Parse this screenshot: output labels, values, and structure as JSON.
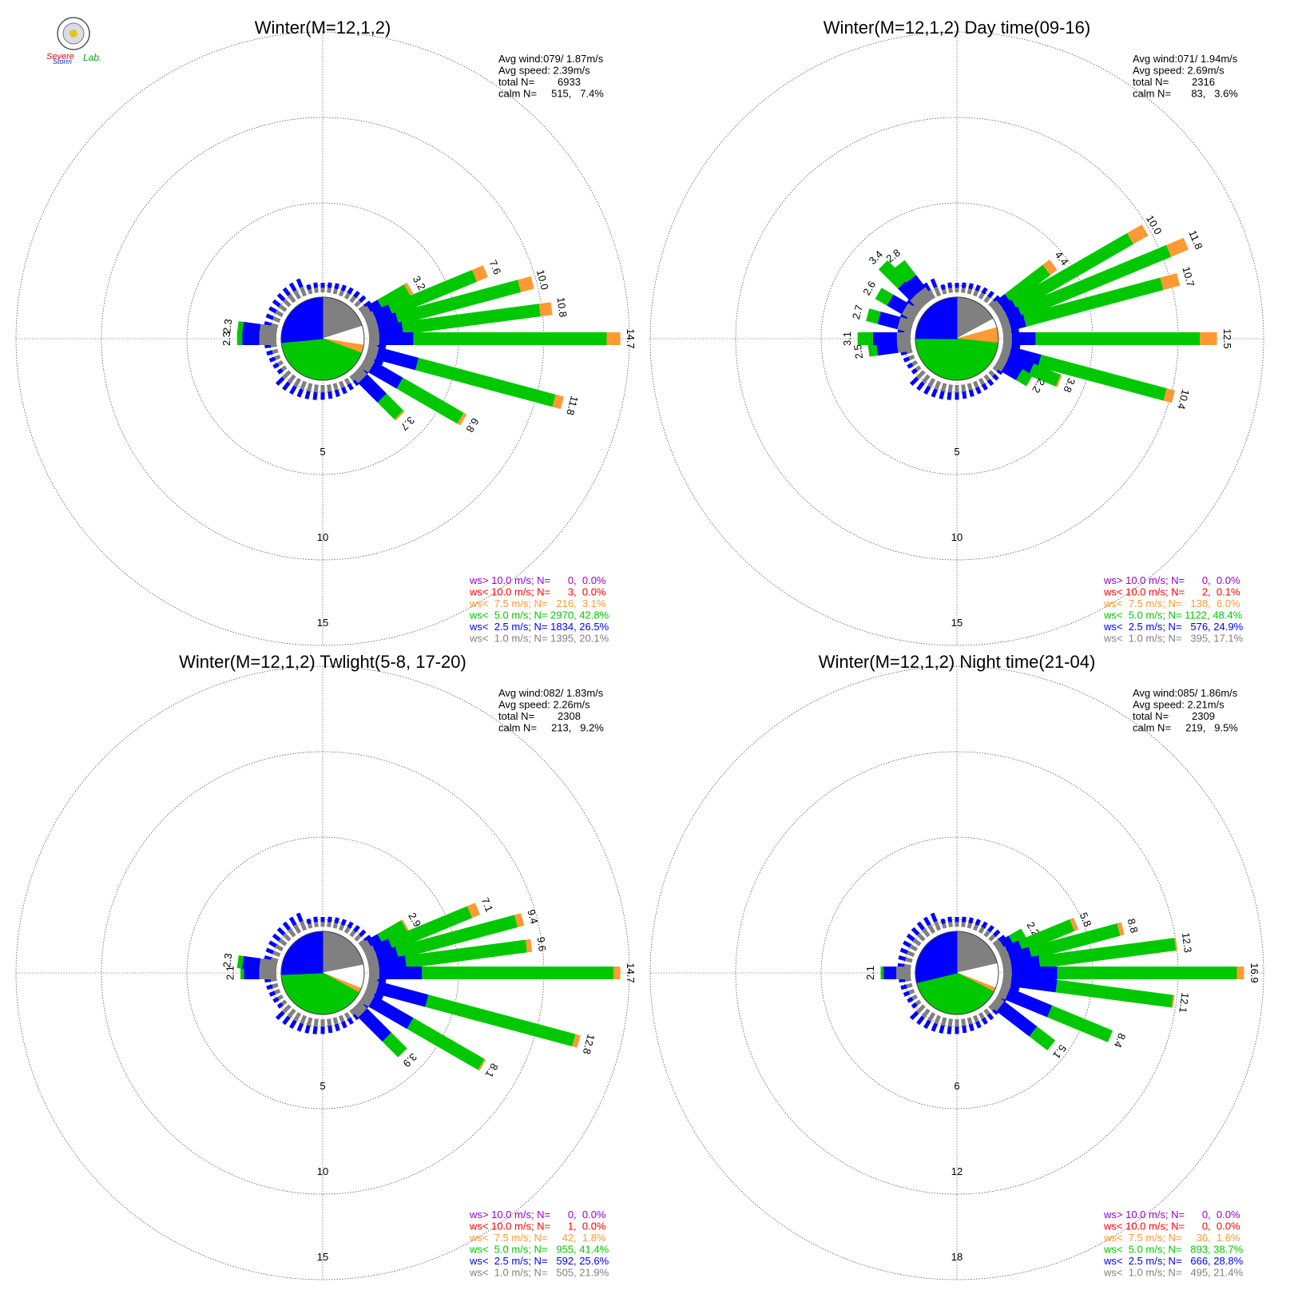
{
  "logo": {
    "text_severe": "Severe",
    "text_storm": "Storm",
    "text_lab": "Lab."
  },
  "legend_colors": {
    "gt10": "#9400d3",
    "lt10": "#ff0000",
    "lt7_5": "#ff9933",
    "lt5": "#00c800",
    "lt2_5": "#0000ff",
    "lt1": "#808080"
  },
  "chart_data": [
    {
      "type": "windrose",
      "title": "Winter(M=12,1,2)",
      "stats": [
        "Avg wind:079/ 1.87m/s",
        "Avg speed: 2.39m/s",
        "total N=        6933",
        "calm N=     515,   7.4%"
      ],
      "ring_labels": [
        "5",
        "10",
        "15"
      ],
      "rmax": 15,
      "legend": [
        "ws> 10.0 m/s; N=      0,  0.0%",
        "ws< 10.0 m/s; N=      3,  0.0%",
        "ws<  7.5 m/s; N=   216,  3.1%",
        "ws<  5.0 m/s; N= 2970, 42.8%",
        "ws<  2.5 m/s; N= 1834, 26.5%",
        "ws<  1.0 m/s; N= 1395, 20.1%"
      ],
      "pie": {
        "lt1": 20.1,
        "lt2_5": 26.5,
        "lt5": 42.8,
        "lt7_5": 3.1,
        "calm": 7.4
      },
      "bars": [
        {
          "dir": 60,
          "total": 3.2,
          "split": [
            0.5,
            0.7,
            1.8,
            0.2
          ],
          "label": "3.2"
        },
        {
          "dir": 67.5,
          "total": 7.6,
          "split": [
            0.6,
            1.0,
            5.3,
            0.7
          ],
          "label": "7.6"
        },
        {
          "dir": 75,
          "total": 10.0,
          "split": [
            0.6,
            1.2,
            7.4,
            0.8
          ],
          "label": "10.0"
        },
        {
          "dir": 82.5,
          "total": 10.8,
          "split": [
            0.6,
            1.4,
            8.1,
            0.7
          ],
          "label": "10.8"
        },
        {
          "dir": 90,
          "total": 14.7,
          "split": [
            0.6,
            2.0,
            11.3,
            0.8
          ],
          "label": "14.7"
        },
        {
          "dir": 105,
          "total": 11.8,
          "split": [
            0.6,
            2.4,
            8.3,
            0.5
          ],
          "label": "11.8"
        },
        {
          "dir": 120,
          "total": 6.8,
          "split": [
            0.6,
            1.9,
            4.1,
            0.2
          ],
          "label": "6.8"
        },
        {
          "dir": 135,
          "total": 3.7,
          "split": [
            0.6,
            1.6,
            1.4,
            0.1
          ],
          "label": "3.7"
        },
        {
          "dir": 277.5,
          "total": 2.3,
          "split": [
            1.0,
            1.0,
            0.3,
            0.0
          ],
          "label": "2.3"
        },
        {
          "dir": 270,
          "total": 2.3,
          "split": [
            1.0,
            1.0,
            0.3,
            0.0
          ],
          "label": "2.3"
        }
      ]
    },
    {
      "type": "windrose",
      "title": "Winter(M=12,1,2) Day time(09-16)",
      "stats": [
        "Avg wind:071/ 1.94m/s",
        "Avg speed: 2.69m/s",
        "total N=        2316",
        "calm N=       83,   3.6%"
      ],
      "ring_labels": [
        "5",
        "10",
        "15"
      ],
      "rmax": 15,
      "legend": [
        "ws> 10.0 m/s; N=      0,  0.0%",
        "ws< 10.0 m/s; N=      2,  0.1%",
        "ws<  7.5 m/s; N=   138,  6.0%",
        "ws<  5.0 m/s; N= 1122, 48.4%",
        "ws<  2.5 m/s; N=   576, 24.9%",
        "ws<  1.0 m/s; N=   395, 17.1%"
      ],
      "pie": {
        "lt1": 17.1,
        "lt2_5": 24.9,
        "lt5": 48.4,
        "lt7_5": 6.0,
        "calm": 3.6
      },
      "bars": [
        {
          "dir": 52.5,
          "total": 4.4,
          "split": [
            0.5,
            0.6,
            2.8,
            0.5
          ],
          "label": "4.4"
        },
        {
          "dir": 60,
          "total": 10.0,
          "split": [
            0.5,
            0.7,
            7.8,
            1.0
          ],
          "label": "10.0"
        },
        {
          "dir": 67.5,
          "total": 11.8,
          "split": [
            0.5,
            0.8,
            9.4,
            1.1
          ],
          "label": "11.8"
        },
        {
          "dir": 75,
          "total": 10.7,
          "split": [
            0.5,
            0.9,
            8.3,
            1.0
          ],
          "label": "10.7"
        },
        {
          "dir": 90,
          "total": 12.5,
          "split": [
            0.5,
            1.4,
            9.6,
            1.0
          ],
          "label": "12.5"
        },
        {
          "dir": 105,
          "total": 10.4,
          "split": [
            0.5,
            1.8,
            7.6,
            0.5
          ],
          "label": "10.4"
        },
        {
          "dir": 112.5,
          "total": 3.8,
          "split": [
            0.5,
            1.5,
            1.7,
            0.1
          ],
          "label": "3.8"
        },
        {
          "dir": 120,
          "total": 2.2,
          "split": [
            0.5,
            1.0,
            0.7,
            0.0
          ],
          "label": "2.2"
        },
        {
          "dir": 262.5,
          "total": 2.5,
          "split": [
            0.8,
            1.2,
            0.5,
            0.0
          ],
          "label": "2.5"
        },
        {
          "dir": 270,
          "total": 3.1,
          "split": [
            0.8,
            1.4,
            0.9,
            0.0
          ],
          "label": "3.1"
        },
        {
          "dir": 285,
          "total": 2.7,
          "split": [
            0.8,
            1.2,
            0.7,
            0.0
          ],
          "label": "2.7"
        },
        {
          "dir": 300,
          "total": 2.6,
          "split": [
            0.8,
            1.0,
            0.8,
            0.0
          ],
          "label": "2.6"
        },
        {
          "dir": 315,
          "total": 3.4,
          "split": [
            0.8,
            1.0,
            1.6,
            0.0
          ],
          "label": "3.4"
        },
        {
          "dir": 322.5,
          "total": 2.8,
          "split": [
            0.8,
            0.9,
            1.1,
            0.0
          ],
          "label": "2.8"
        }
      ]
    },
    {
      "type": "windrose",
      "title": "Winter(M=12,1,2) Twlight(5-8, 17-20)",
      "stats": [
        "Avg wind:082/ 1.83m/s",
        "Avg speed: 2.26m/s",
        "total N=        2308",
        "calm N=     213,   9.2%"
      ],
      "ring_labels": [
        "5",
        "10",
        "15"
      ],
      "rmax": 15,
      "legend": [
        "ws> 10.0 m/s; N=      0,  0.0%",
        "ws< 10.0 m/s; N=      1,  0.0%",
        "ws<  7.5 m/s; N=     42,  1.8%",
        "ws<  5.0 m/s; N=   955, 41.4%",
        "ws<  2.5 m/s; N=   592, 25.6%",
        "ws<  1.0 m/s; N=   505, 21.9%"
      ],
      "pie": {
        "lt1": 21.9,
        "lt2_5": 25.6,
        "lt5": 41.4,
        "lt7_5": 1.8,
        "calm": 9.2
      },
      "bars": [
        {
          "dir": 60,
          "total": 2.9,
          "split": [
            0.5,
            0.7,
            1.6,
            0.1
          ],
          "label": "2.9"
        },
        {
          "dir": 67.5,
          "total": 7.1,
          "split": [
            0.6,
            1.0,
            5.0,
            0.5
          ],
          "label": "7.1"
        },
        {
          "dir": 75,
          "total": 9.4,
          "split": [
            0.6,
            1.2,
            7.2,
            0.4
          ],
          "label": "9.4"
        },
        {
          "dir": 82.5,
          "total": 9.6,
          "split": [
            0.6,
            1.6,
            7.1,
            0.3
          ],
          "label": "9.6"
        },
        {
          "dir": 90,
          "total": 14.7,
          "split": [
            0.6,
            2.5,
            11.2,
            0.4
          ],
          "label": "14.7"
        },
        {
          "dir": 105,
          "total": 12.8,
          "split": [
            0.6,
            3.0,
            8.9,
            0.3
          ],
          "label": "12.8"
        },
        {
          "dir": 120,
          "total": 8.1,
          "split": [
            0.6,
            2.6,
            4.8,
            0.1
          ],
          "label": "8.1"
        },
        {
          "dir": 135,
          "total": 3.9,
          "split": [
            0.6,
            2.0,
            1.3,
            0.0
          ],
          "label": "3.9"
        },
        {
          "dir": 270,
          "total": 2.1,
          "split": [
            1.0,
            0.9,
            0.2,
            0.0
          ],
          "label": "2.1"
        },
        {
          "dir": 277.5,
          "total": 2.3,
          "split": [
            1.0,
            1.0,
            0.3,
            0.0
          ],
          "label": "2.3"
        }
      ]
    },
    {
      "type": "windrose",
      "title": "Winter(M=12,1,2) Night time(21-04)",
      "stats": [
        "Avg wind:085/ 1.86m/s",
        "Avg speed: 2.21m/s",
        "total N=        2309",
        "calm N=     219,   9.5%"
      ],
      "ring_labels": [
        "6",
        "12",
        "18"
      ],
      "rmax": 18,
      "legend": [
        "ws> 10.0 m/s; N=      0,  0.0%",
        "ws< 10.0 m/s; N=      0,  0.0%",
        "ws<  7.5 m/s; N=     36,  1.6%",
        "ws<  5.0 m/s; N=   893, 38.7%",
        "ws<  2.5 m/s; N=   666, 28.8%",
        "ws<  1.0 m/s; N=   495, 21.4%"
      ],
      "pie": {
        "lt1": 21.4,
        "lt2_5": 28.8,
        "lt5": 38.7,
        "lt7_5": 1.6,
        "calm": 9.5
      },
      "bars": [
        {
          "dir": 60,
          "total": 2.2,
          "split": [
            0.5,
            0.7,
            1.0,
            0.0
          ],
          "label": "2.2"
        },
        {
          "dir": 67.5,
          "total": 5.8,
          "split": [
            0.6,
            1.0,
            3.9,
            0.3
          ],
          "label": "5.8"
        },
        {
          "dir": 75,
          "total": 8.8,
          "split": [
            0.6,
            1.5,
            6.4,
            0.3
          ],
          "label": "8.8"
        },
        {
          "dir": 82.5,
          "total": 12.3,
          "split": [
            0.6,
            2.0,
            9.6,
            0.1
          ],
          "label": "12.3"
        },
        {
          "dir": 90,
          "total": 16.9,
          "split": [
            0.6,
            3.2,
            12.6,
            0.5
          ],
          "label": "16.9"
        },
        {
          "dir": 97.5,
          "total": 12.1,
          "split": [
            0.6,
            3.2,
            8.2,
            0.1
          ],
          "label": "12.1"
        },
        {
          "dir": 112.5,
          "total": 8.4,
          "split": [
            0.6,
            3.2,
            4.6,
            0.0
          ],
          "label": "8.4"
        },
        {
          "dir": 127.5,
          "total": 5.1,
          "split": [
            0.6,
            2.9,
            1.6,
            0.0
          ],
          "label": "5.1"
        },
        {
          "dir": 270,
          "total": 2.1,
          "split": [
            1.0,
            0.9,
            0.2,
            0.0
          ],
          "label": "2.1"
        }
      ]
    }
  ]
}
